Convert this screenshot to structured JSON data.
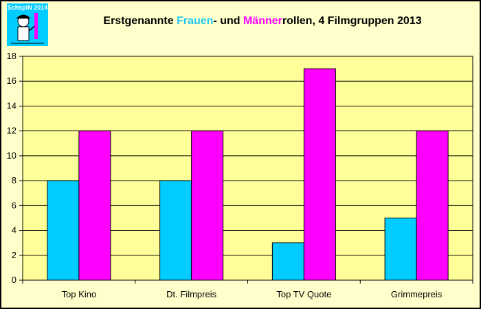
{
  "logo": {
    "text": "SchspIN 2014"
  },
  "title": {
    "part1": "Erstgenannte ",
    "frauen": "Frauen",
    "part2": "- und ",
    "maenner": "Männer",
    "part3": "rollen, 4 Filmgruppen 2013"
  },
  "colors": {
    "background": "#ffffcc",
    "plot_area": "#ffff99",
    "frauen": "#00ccff",
    "maenner": "#ff00ff",
    "logo": "#00ccff"
  },
  "chart_data": {
    "type": "bar",
    "title": "Erstgenannte Frauen- und Männerrollen, 4 Filmgruppen 2013",
    "categories": [
      "Top Kino",
      "Dt. Filmpreis",
      "Top TV Quote",
      "Grimmepreis"
    ],
    "series": [
      {
        "values": [
          8,
          8,
          3,
          5
        ],
        "color": "#00ccff"
      },
      {
        "values": [
          12,
          12,
          17,
          12
        ],
        "color": "#ff00ff"
      }
    ],
    "ylim": [
      0,
      18
    ],
    "yticks": [
      0,
      2,
      4,
      6,
      8,
      10,
      12,
      14,
      16,
      18
    ],
    "grid": true,
    "legend": "none"
  }
}
